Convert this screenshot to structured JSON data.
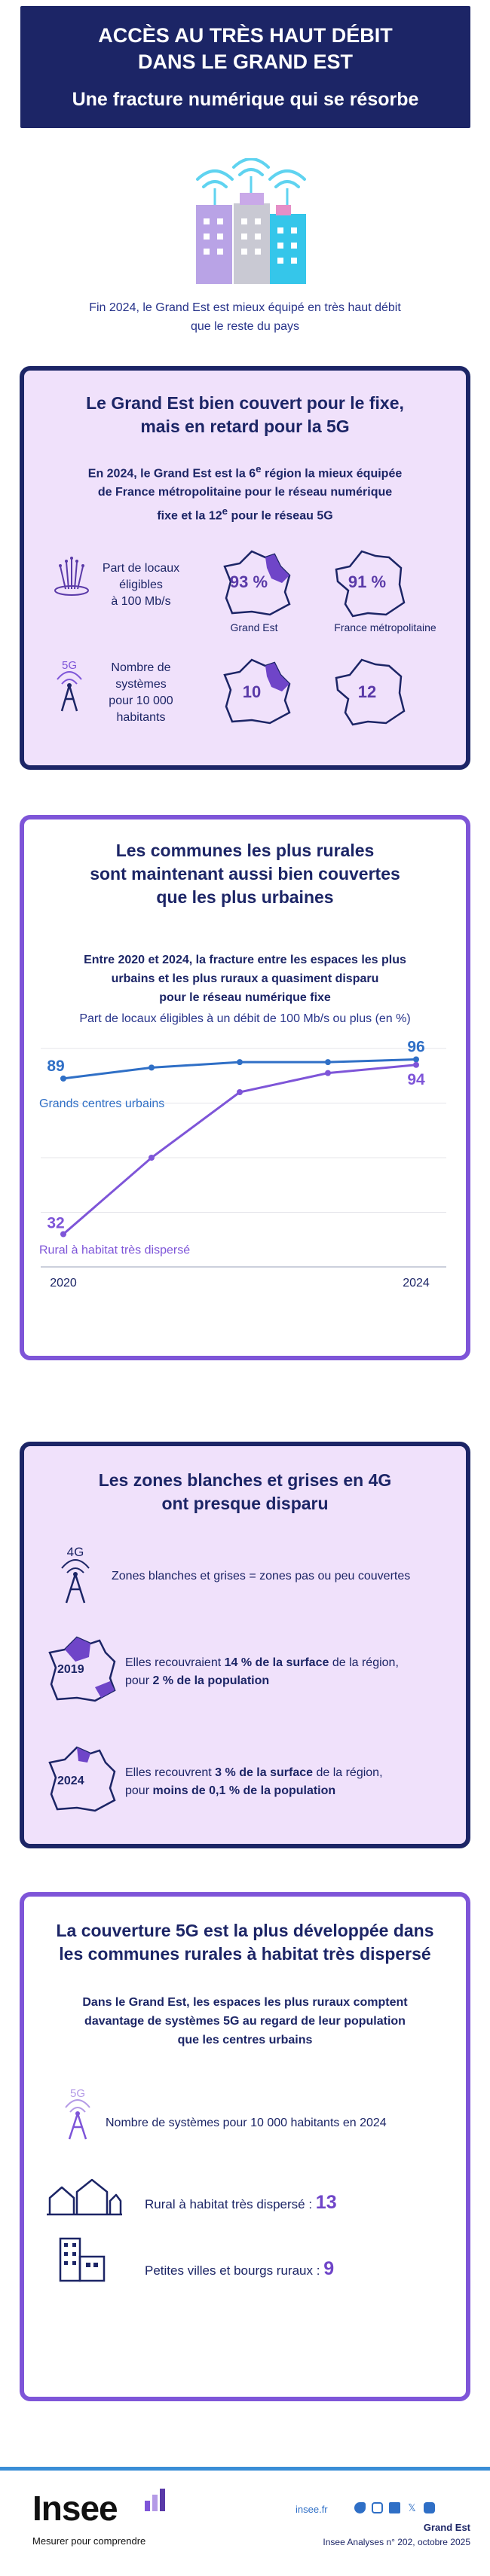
{
  "header": {
    "title_line1": "ACCÈS AU TRÈS HAUT DÉBIT",
    "title_line2": "DANS LE GRAND EST",
    "subtitle": "Une fracture numérique qui se résorbe"
  },
  "intro": {
    "line1": "Fin 2024, le Grand Est est mieux équipé en très haut débit",
    "line2": "que le reste du pays"
  },
  "section1": {
    "title_line1": "Le Grand Est bien couvert pour le fixe,",
    "title_line2": "mais en retard pour la 5G",
    "sub_line1a": "En 2024, le Grand Est est la 6",
    "sub_sup1": "e",
    "sub_line1b": " région la mieux équipée",
    "sub_line2": "de France métropolitaine pour le réseau numérique",
    "sub_line3a": "fixe et la 12",
    "sub_sup2": "e",
    "sub_line3b": " pour le réseau 5G",
    "fixed_label": [
      "Part de locaux",
      "éligibles",
      "à 100 Mb/s"
    ],
    "fiveg_label": [
      "Nombre de",
      "systèmes",
      "pour 10 000",
      "habitants"
    ],
    "icon_5g_text": "5G",
    "ge_fixed": "93 %",
    "fr_fixed": "91 %",
    "ge_label": "Grand Est",
    "fr_label": "France métropolitaine",
    "ge_5g": "10",
    "fr_5g": "12"
  },
  "section2": {
    "title_line1": "Les communes les plus rurales",
    "title_line2": "sont maintenant aussi bien couvertes",
    "title_line3": "que les plus urbaines",
    "sub_line1": "Entre 2020 et 2024, la fracture entre les espaces les plus",
    "sub_line2": "urbains et les plus ruraux a quasiment disparu",
    "sub_line3": "pour le réseau numérique fixe",
    "chart_caption": "Part de locaux éligibles à un débit de 100 Mb/s ou plus (en %)"
  },
  "chart_data": {
    "type": "line",
    "title": "Part de locaux éligibles à un débit de 100 Mb/s ou plus (en %)",
    "x": [
      2020,
      2021,
      2022,
      2023,
      2024
    ],
    "x_tick_labels": [
      "2020",
      "2024"
    ],
    "ylim": [
      20,
      100
    ],
    "grid": true,
    "series": [
      {
        "name": "Grands centres urbains",
        "values": [
          89,
          93,
          95,
          95,
          96
        ],
        "color": "#2f6fc6",
        "end_labels": [
          "89",
          "96"
        ]
      },
      {
        "name": "Rural à habitat très dispersé",
        "values": [
          32,
          60,
          84,
          91,
          94
        ],
        "color": "#7e55d8",
        "end_labels": [
          "32",
          "94"
        ]
      }
    ]
  },
  "section3": {
    "title_line1": "Les zones blanches et grises en 4G",
    "title_line2": "ont presque disparu",
    "icon_4g_text": "4G",
    "def_text": "Zones blanches et grises = zones pas ou peu couvertes",
    "year1": "2019",
    "r1_a": "Elles recouvraient ",
    "r1_b": "14 % de la surface",
    "r1_c": " de la région,",
    "r1_d": "pour ",
    "r1_e": "2 % de la population",
    "year2": "2024",
    "r2_a": "Elles recouvrent ",
    "r2_b": "3 % de la surface",
    "r2_c": " de la région,",
    "r2_d": "pour ",
    "r2_e": "moins de 0,1 % de la population"
  },
  "section4": {
    "title_line1": "La couverture 5G est la plus développée dans",
    "title_line2": "les communes rurales à habitat très dispersé",
    "sub_line1": "Dans le Grand Est, les espaces les plus ruraux comptent",
    "sub_line2": "davantage de systèmes 5G au regard de leur population",
    "sub_line3": "que les centres urbains",
    "icon_5g_text": "5G",
    "metric_label": "Nombre de systèmes pour 10 000 habitants en 2024",
    "rural_label": "Rural à habitat très dispersé :",
    "rural_value": "13",
    "small_label": "Petites villes et bourgs ruraux :",
    "small_value": "9"
  },
  "footer": {
    "logo": "Insee",
    "tagline": "Mesurer pour comprendre",
    "site": "insee.fr",
    "region": "Grand Est",
    "pub": "Insee Analyses n° 202, octobre 2025"
  },
  "colors": {
    "navy": "#1c2566",
    "purple": "#7e55d8",
    "lavender": "#f0e1fb",
    "blue": "#2f6fc6"
  }
}
